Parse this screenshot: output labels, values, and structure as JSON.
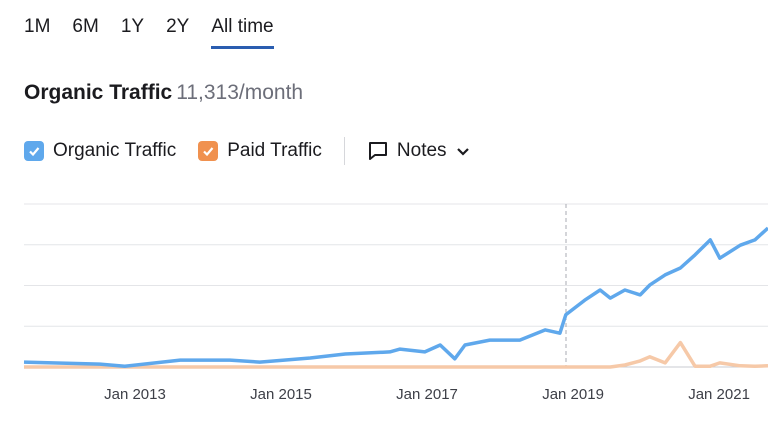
{
  "tabs": [
    "1M",
    "6M",
    "1Y",
    "2Y",
    "All time"
  ],
  "header": {
    "title": "Organic Traffic",
    "value": "11,313/month"
  },
  "notes_label": "Notes",
  "chart_data": {
    "type": "line",
    "x": [
      2011.48,
      2012.52,
      2012.86,
      2013.62,
      2014.3,
      2014.71,
      2015.4,
      2015.88,
      2016.49,
      2016.63,
      2016.97,
      2017.18,
      2017.38,
      2017.52,
      2017.86,
      2018.27,
      2018.62,
      2018.82,
      2018.9,
      2019.16,
      2019.37,
      2019.51,
      2019.71,
      2019.92,
      2020.05,
      2020.26,
      2020.47,
      2020.67,
      2020.88,
      2021.01,
      2021.29,
      2021.49,
      2021.67
    ],
    "series": [
      {
        "name": "Organic Traffic",
        "color": "#5fa8ec",
        "values": [
          0.12,
          0.07,
          0.02,
          0.17,
          0.17,
          0.12,
          0.22,
          0.32,
          0.37,
          0.44,
          0.37,
          0.54,
          0.2,
          0.54,
          0.66,
          0.66,
          0.91,
          0.83,
          1.28,
          1.64,
          1.89,
          1.69,
          1.89,
          1.77,
          2.01,
          2.26,
          2.43,
          2.75,
          3.12,
          2.67,
          2.99,
          3.12,
          3.41
        ]
      },
      {
        "name": "Paid Traffic",
        "color": "#f6c9a8",
        "values": [
          0,
          0,
          0,
          0,
          0,
          0,
          0,
          0,
          0,
          0,
          0,
          0,
          0,
          0,
          0,
          0,
          0,
          0,
          0,
          0,
          0,
          0,
          0.05,
          0.15,
          0.25,
          0.1,
          0.6,
          0.02,
          0.02,
          0.1,
          0.03,
          0.02,
          0.03
        ]
      }
    ],
    "legend_colors": [
      "#5fa8ec",
      "#f0914f"
    ],
    "xlim": [
      2011.48,
      2021.67
    ],
    "xticks": [
      {
        "value": 2013,
        "label": "Jan 2013"
      },
      {
        "value": 2015,
        "label": "Jan 2015"
      },
      {
        "value": 2017,
        "label": "Jan 2017"
      },
      {
        "value": 2019,
        "label": "Jan 2019"
      },
      {
        "value": 2021,
        "label": "Jan 2021"
      }
    ],
    "ylim": [
      0,
      4
    ],
    "yticks": [
      0,
      1,
      2,
      3,
      4
    ],
    "grid": true
  }
}
